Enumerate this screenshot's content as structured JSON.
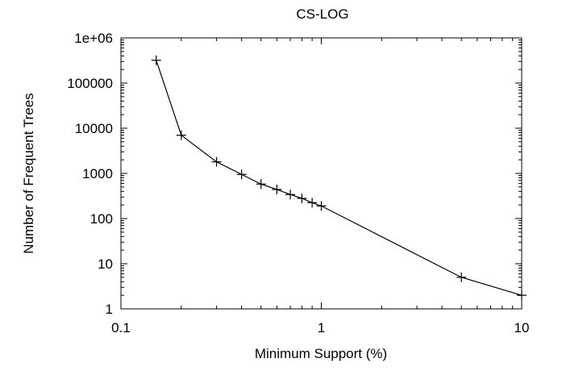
{
  "chart_data": {
    "type": "line",
    "title": "CS-LOG",
    "xlabel": "Minimum Support (%)",
    "ylabel": "Number of Frequent Trees",
    "xscale": "log",
    "yscale": "log",
    "xlim": [
      0.1,
      10
    ],
    "ylim": [
      1,
      1000000
    ],
    "x_ticks": [
      {
        "value": 0.1,
        "label": "0.1"
      },
      {
        "value": 1,
        "label": "1"
      },
      {
        "value": 10,
        "label": "10"
      }
    ],
    "y_ticks": [
      {
        "value": 1,
        "label": "1"
      },
      {
        "value": 10,
        "label": "10"
      },
      {
        "value": 100,
        "label": "100"
      },
      {
        "value": 1000,
        "label": "1000"
      },
      {
        "value": 10000,
        "label": "10000"
      },
      {
        "value": 100000,
        "label": "100000"
      },
      {
        "value": 1000000,
        "label": "1e+06"
      }
    ],
    "grid": false,
    "legend": "none",
    "series": [
      {
        "name": "CS-LOG",
        "marker": "plus",
        "x": [
          0.15,
          0.2,
          0.3,
          0.4,
          0.5,
          0.6,
          0.7,
          0.8,
          0.9,
          1,
          5,
          10
        ],
        "y": [
          320000,
          7000,
          1800,
          950,
          580,
          440,
          340,
          280,
          225,
          190,
          5,
          2
        ]
      }
    ]
  },
  "colors": {
    "line": "#000000",
    "background": "#ffffff"
  }
}
